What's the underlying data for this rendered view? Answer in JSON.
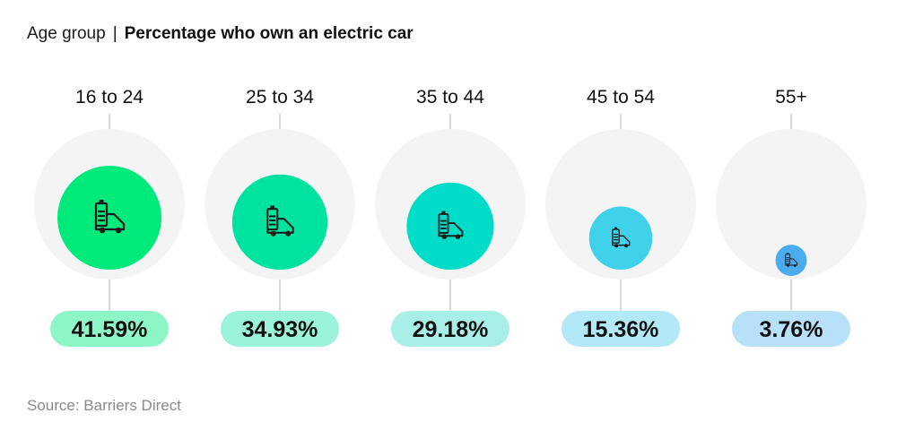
{
  "header": {
    "lead": "Age group",
    "separator": "|",
    "title": "Percentage who own an electric car"
  },
  "source": "Source: Barriers Direct",
  "chart_data": {
    "type": "bubble",
    "title": "Percentage who own an electric car",
    "category_label": "Age group",
    "max_value": 100,
    "categories": [
      "16 to 24",
      "25 to 34",
      "35 to 44",
      "45 to 54",
      "55+"
    ],
    "values": [
      41.59,
      34.93,
      29.18,
      15.36,
      3.76
    ],
    "value_labels": [
      "41.59%",
      "34.93%",
      "29.18%",
      "15.36%",
      "3.76%"
    ],
    "bubble_colors": [
      "#00ea7c",
      "#00e2a0",
      "#00dcc8",
      "#40d2ea",
      "#4aacee"
    ],
    "pill_colors": [
      "#8ef5c6",
      "#9af3d8",
      "#a8efe8",
      "#b3e9f6",
      "#b7e1f8"
    ],
    "background_circle_color": "#f4f4f4",
    "icon": "electric-van-icon",
    "grid": false,
    "legend": "none"
  }
}
